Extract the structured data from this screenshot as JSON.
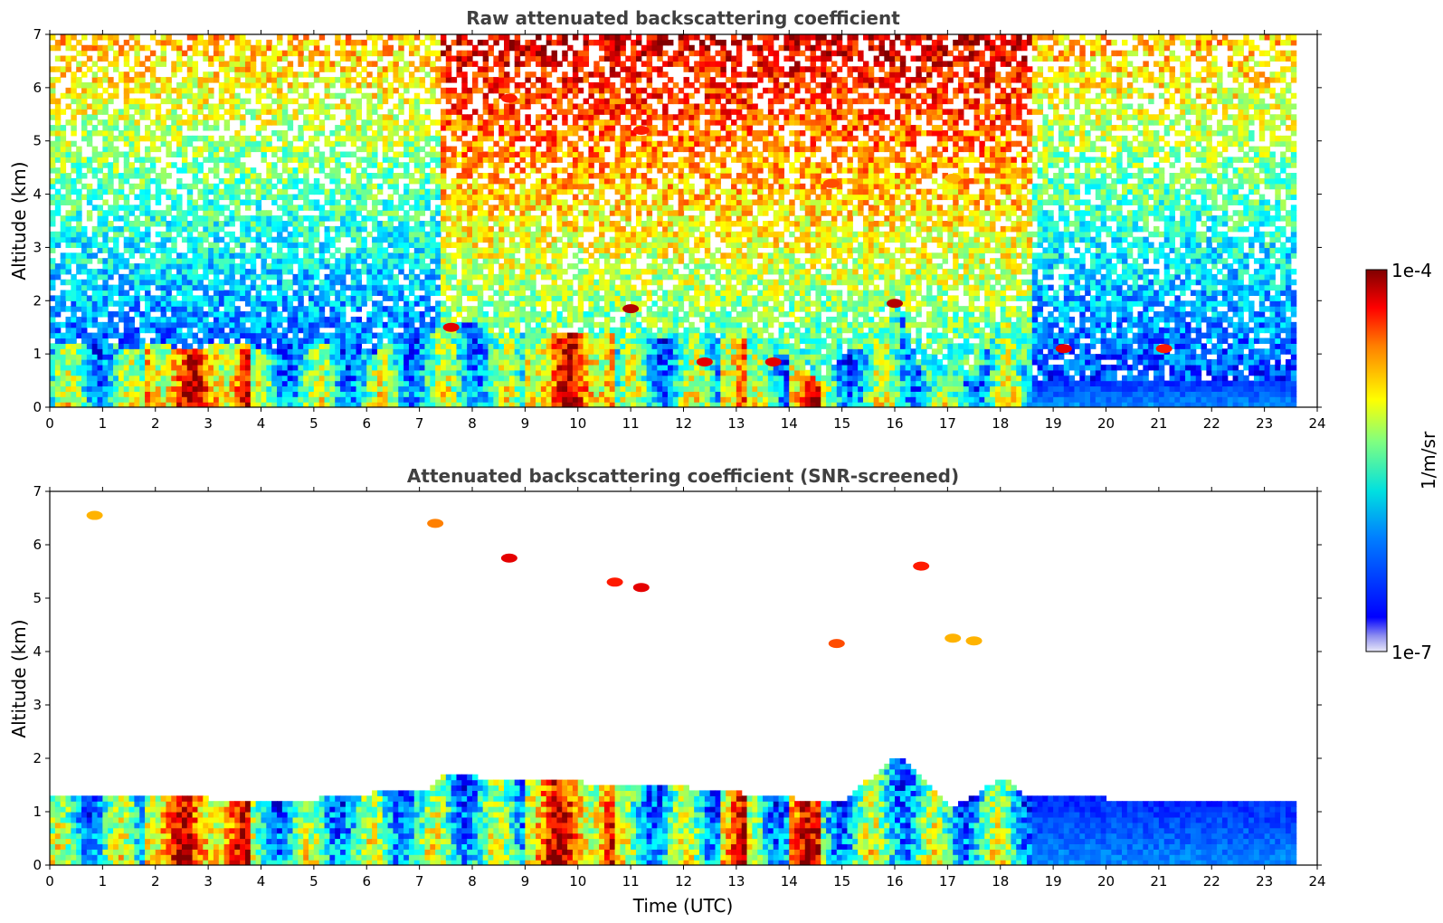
{
  "chart_data": [
    {
      "type": "heatmap",
      "title": "Raw attenuated backscattering coefficient",
      "xlabel": "",
      "ylabel": "Altitude (km)",
      "xlim": [
        0,
        24
      ],
      "ylim": [
        0,
        7
      ],
      "x_ticks": [
        0,
        1,
        2,
        3,
        4,
        5,
        6,
        7,
        8,
        9,
        10,
        11,
        12,
        13,
        14,
        15,
        16,
        17,
        18,
        19,
        20,
        21,
        22,
        23,
        24
      ],
      "y_ticks": [
        0,
        1,
        2,
        3,
        4,
        5,
        6,
        7
      ],
      "data_end_time": 23.6,
      "low_cloud_top_profile": {
        "x": [
          0,
          0.5,
          1,
          1.5,
          2,
          2.5,
          3,
          3.5,
          4,
          4.5,
          5,
          5.5,
          6,
          6.5,
          7,
          7.5,
          8,
          8.5,
          9,
          9.5,
          10,
          10.5,
          11,
          11.5,
          12,
          12.5,
          13,
          13.5,
          14,
          14.5,
          15,
          15.5,
          16,
          16.5,
          17,
          17.5,
          18,
          18.5
        ],
        "y": [
          1.1,
          1.1,
          1.2,
          1.0,
          1.2,
          1.0,
          1.1,
          1.2,
          1.0,
          1.2,
          1.1,
          1.1,
          0.9,
          1.3,
          1.2,
          1.6,
          1.5,
          1.3,
          1.4,
          1.3,
          1.4,
          1.3,
          1.4,
          1.2,
          1.4,
          1.3,
          1.3,
          0.9,
          0.9,
          0.4,
          1.0,
          1.1,
          2.0,
          0.4,
          0.4,
          0.5,
          1.8,
          0.5
        ]
      },
      "elevated_features": [
        {
          "t": 7.6,
          "z": 1.5,
          "level": 0.9
        },
        {
          "t": 8.7,
          "z": 5.8,
          "level": 0.85
        },
        {
          "t": 11.0,
          "z": 1.85,
          "level": 0.95
        },
        {
          "t": 11.2,
          "z": 5.2,
          "level": 0.85
        },
        {
          "t": 12.4,
          "z": 0.85,
          "level": 0.9
        },
        {
          "t": 13.7,
          "z": 0.85,
          "level": 0.9
        },
        {
          "t": 14.8,
          "z": 4.2,
          "level": 0.8
        },
        {
          "t": 16.0,
          "z": 1.95,
          "level": 0.95
        },
        {
          "t": 17.1,
          "z": 4.3,
          "level": 0.7
        },
        {
          "t": 19.2,
          "z": 1.1,
          "level": 0.9
        },
        {
          "t": 21.1,
          "z": 1.1,
          "level": 0.85
        }
      ]
    },
    {
      "type": "heatmap",
      "title": "Attenuated backscattering coefficient (SNR-screened)",
      "xlabel": "Time (UTC)",
      "ylabel": "Altitude (km)",
      "xlim": [
        0,
        24
      ],
      "ylim": [
        0,
        7
      ],
      "x_ticks": [
        0,
        1,
        2,
        3,
        4,
        5,
        6,
        7,
        8,
        9,
        10,
        11,
        12,
        13,
        14,
        15,
        16,
        17,
        18,
        19,
        20,
        21,
        22,
        23,
        24
      ],
      "y_ticks": [
        0,
        1,
        2,
        3,
        4,
        5,
        6,
        7
      ],
      "data_end_time": 23.6,
      "boundary_layer_top_profile": {
        "x": [
          0,
          1,
          2,
          3,
          4,
          5,
          6,
          6.5,
          7,
          7.5,
          8,
          8.5,
          9,
          10,
          11,
          12,
          13,
          14,
          15,
          16,
          17,
          18,
          18.5,
          19,
          20,
          21,
          22,
          23,
          23.6
        ],
        "y": [
          1.25,
          1.25,
          1.3,
          1.2,
          1.2,
          1.2,
          1.3,
          1.4,
          1.3,
          1.7,
          1.6,
          1.5,
          1.6,
          1.5,
          1.5,
          1.4,
          1.3,
          1.2,
          1.2,
          2.0,
          1.0,
          1.6,
          1.2,
          1.3,
          1.2,
          1.2,
          1.2,
          1.15,
          1.1
        ]
      },
      "isolated_features": [
        {
          "t": 0.85,
          "z": 6.55,
          "level": 0.7
        },
        {
          "t": 7.3,
          "z": 6.4,
          "level": 0.75
        },
        {
          "t": 8.7,
          "z": 5.75,
          "level": 0.9
        },
        {
          "t": 10.7,
          "z": 5.3,
          "level": 0.85
        },
        {
          "t": 11.2,
          "z": 5.2,
          "level": 0.9
        },
        {
          "t": 14.9,
          "z": 4.15,
          "level": 0.8
        },
        {
          "t": 16.5,
          "z": 5.6,
          "level": 0.85
        },
        {
          "t": 17.1,
          "z": 4.25,
          "level": 0.7
        },
        {
          "t": 17.5,
          "z": 4.2,
          "level": 0.7
        }
      ]
    }
  ],
  "colorbar": {
    "label": "1/m/sr",
    "max_label": "1e-4",
    "min_label": "1e-7",
    "colormap": "jet"
  }
}
